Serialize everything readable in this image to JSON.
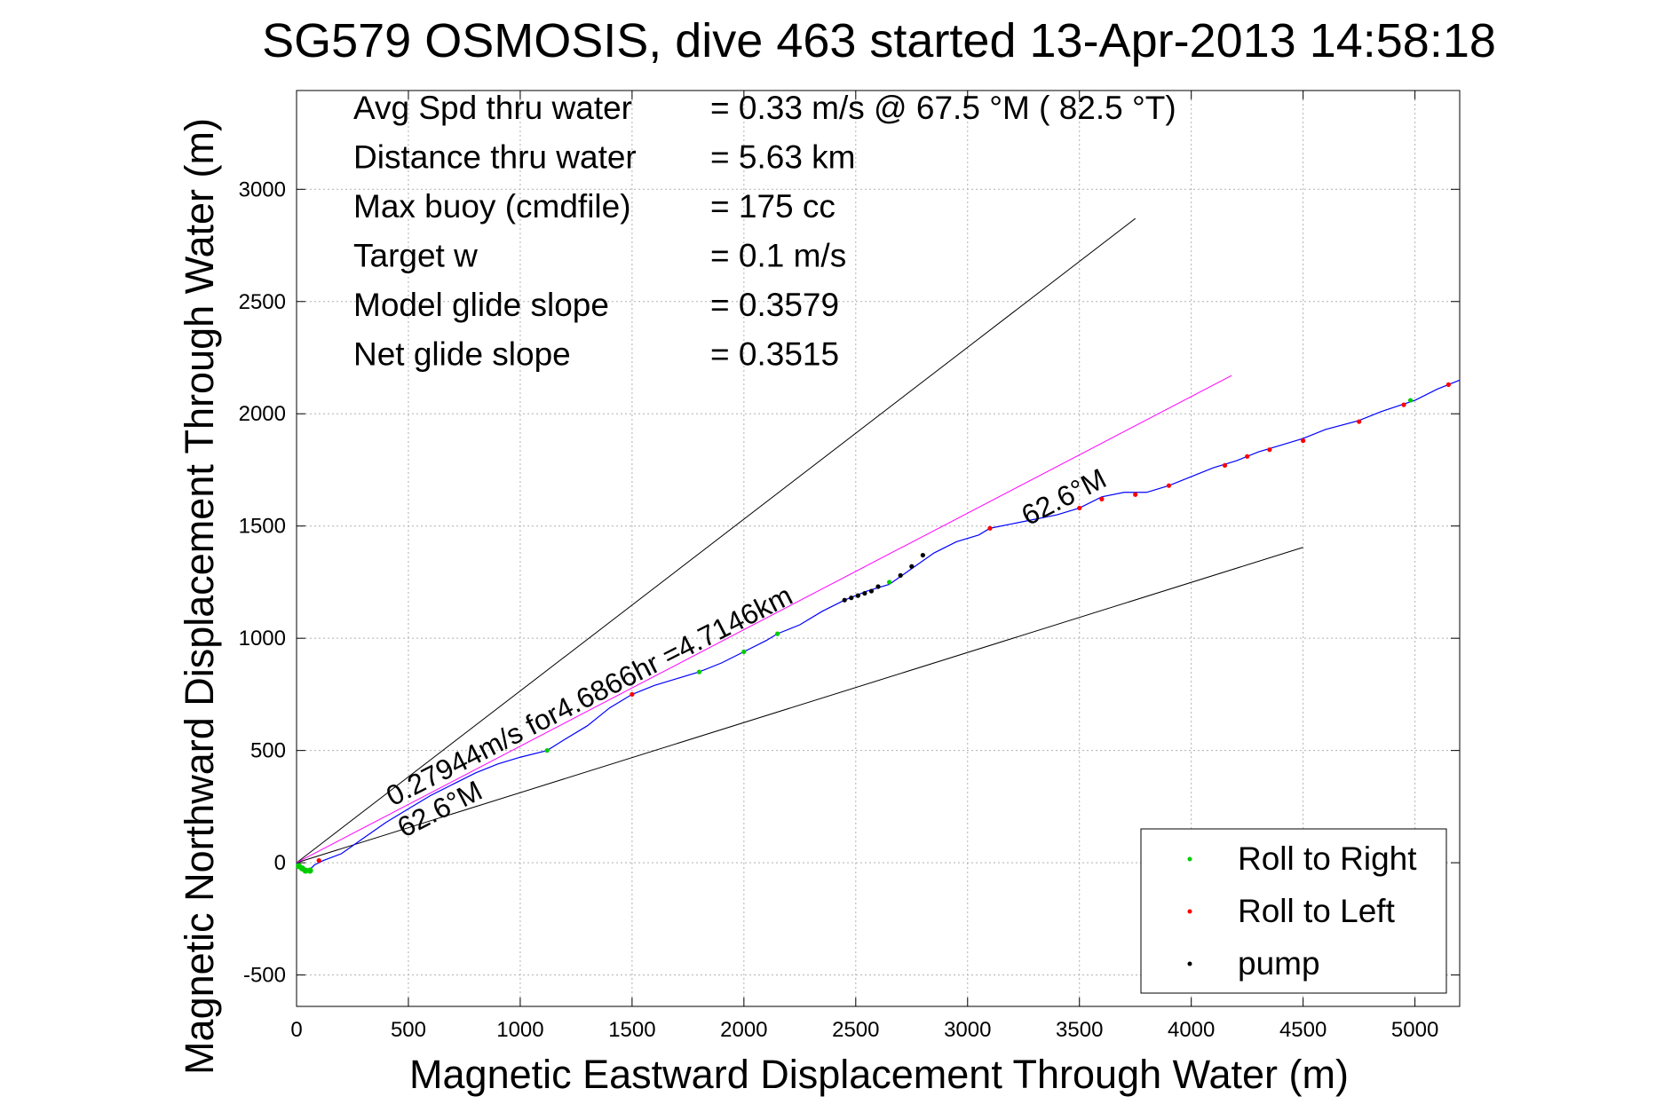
{
  "chart_data": {
    "type": "line",
    "title": "SG579 OSMOSIS, dive 463 started 13-Apr-2013 14:58:18",
    "xlabel": "Magnetic Eastward Displacement Through Water (m)",
    "ylabel": "Magnetic Northward Displacement Through Water (m)",
    "xlim": [
      0,
      5200
    ],
    "ylim": [
      -640,
      3440
    ],
    "xticks": [
      0,
      500,
      1000,
      1500,
      2000,
      2500,
      3000,
      3500,
      4000,
      4500,
      5000
    ],
    "xtick_labels": [
      "0",
      "500",
      "1000",
      "1500",
      "2000",
      "2500",
      "3000",
      "3500",
      "4000",
      "4500",
      "5000"
    ],
    "yticks": [
      -500,
      0,
      500,
      1000,
      1500,
      2000,
      2500,
      3000
    ],
    "ytick_labels": [
      "-500",
      "0",
      "500",
      "1000",
      "1500",
      "2000",
      "2500",
      "3000"
    ],
    "grid": true,
    "legend_position": "bottom-right",
    "stats": [
      {
        "label": "Avg Spd thru water",
        "value": "=  0.33 m/s @  67.5 °M ( 82.5 °T)"
      },
      {
        "label": "Distance thru water",
        "value": "=  5.63 km"
      },
      {
        "label": "Max buoy (cmdfile)",
        "value": "= 175 cc"
      },
      {
        "label": "Target w",
        "value": "= 0.1 m/s"
      },
      {
        "label": "Model glide slope",
        "value": "= 0.3579"
      },
      {
        "label": "Net glide slope",
        "value": "= 0.3515"
      }
    ],
    "reference_lines": [
      {
        "color": "#000000",
        "points": [
          [
            0,
            0
          ],
          [
            3750,
            2870
          ]
        ]
      },
      {
        "color": "#000000",
        "points": [
          [
            0,
            0
          ],
          [
            4500,
            1405
          ]
        ]
      },
      {
        "color": "#ff00ff",
        "points": [
          [
            0,
            0
          ],
          [
            4180,
            2170
          ]
        ]
      }
    ],
    "track": {
      "color": "#0000ff",
      "points": [
        [
          0,
          0
        ],
        [
          20,
          -20
        ],
        [
          50,
          -40
        ],
        [
          80,
          -10
        ],
        [
          120,
          10
        ],
        [
          200,
          40
        ],
        [
          300,
          110
        ],
        [
          400,
          180
        ],
        [
          500,
          240
        ],
        [
          600,
          300
        ],
        [
          700,
          350
        ],
        [
          800,
          400
        ],
        [
          900,
          440
        ],
        [
          1000,
          470
        ],
        [
          1120,
          500
        ],
        [
          1200,
          550
        ],
        [
          1300,
          610
        ],
        [
          1400,
          690
        ],
        [
          1500,
          750
        ],
        [
          1600,
          790
        ],
        [
          1700,
          820
        ],
        [
          1800,
          850
        ],
        [
          1900,
          890
        ],
        [
          2000,
          940
        ],
        [
          2100,
          990
        ],
        [
          2150,
          1020
        ],
        [
          2250,
          1060
        ],
        [
          2350,
          1120
        ],
        [
          2450,
          1170
        ],
        [
          2550,
          1210
        ],
        [
          2650,
          1240
        ],
        [
          2750,
          1310
        ],
        [
          2850,
          1380
        ],
        [
          2950,
          1430
        ],
        [
          3050,
          1460
        ],
        [
          3100,
          1490
        ],
        [
          3200,
          1510
        ],
        [
          3300,
          1530
        ],
        [
          3400,
          1550
        ],
        [
          3500,
          1580
        ],
        [
          3600,
          1630
        ],
        [
          3700,
          1650
        ],
        [
          3800,
          1650
        ],
        [
          3900,
          1680
        ],
        [
          4000,
          1720
        ],
        [
          4100,
          1760
        ],
        [
          4200,
          1790
        ],
        [
          4300,
          1830
        ],
        [
          4400,
          1860
        ],
        [
          4500,
          1890
        ],
        [
          4600,
          1930
        ],
        [
          4750,
          1970
        ],
        [
          4850,
          2010
        ],
        [
          5000,
          2060
        ],
        [
          5100,
          2110
        ],
        [
          5200,
          2150
        ]
      ]
    },
    "markers": {
      "roll_right": {
        "color": "#00cc00",
        "points": [
          [
            10,
            -15
          ],
          [
            25,
            -25
          ],
          [
            40,
            -35
          ],
          [
            60,
            -35
          ],
          [
            1120,
            500
          ],
          [
            1800,
            850
          ],
          [
            2150,
            1020
          ],
          [
            2000,
            940
          ],
          [
            2650,
            1250
          ],
          [
            4980,
            2060
          ]
        ]
      },
      "roll_left": {
        "color": "#ff0000",
        "points": [
          [
            100,
            10
          ],
          [
            1500,
            750
          ],
          [
            3100,
            1490
          ],
          [
            3500,
            1580
          ],
          [
            3600,
            1620
          ],
          [
            3750,
            1640
          ],
          [
            3900,
            1680
          ],
          [
            4150,
            1770
          ],
          [
            4250,
            1810
          ],
          [
            4350,
            1840
          ],
          [
            4500,
            1880
          ],
          [
            4750,
            1965
          ],
          [
            4950,
            2040
          ],
          [
            5150,
            2130
          ]
        ]
      },
      "pump": {
        "color": "#000000",
        "points": [
          [
            2450,
            1170
          ],
          [
            2480,
            1180
          ],
          [
            2510,
            1190
          ],
          [
            2540,
            1200
          ],
          [
            2570,
            1210
          ],
          [
            2600,
            1230
          ],
          [
            2700,
            1280
          ],
          [
            2750,
            1320
          ],
          [
            2800,
            1370
          ]
        ]
      }
    },
    "annotations": [
      {
        "text": "0.27944m/s for4.6866hr =4.7146km",
        "x": 430,
        "y": 250,
        "angle_deg": -27
      },
      {
        "text": "62.6°M",
        "x": 480,
        "y": 110,
        "angle_deg": -27
      },
      {
        "text": "62.6°M",
        "x": 3270,
        "y": 1500,
        "angle_deg": -27
      }
    ],
    "legend": [
      {
        "label": "Roll to Right",
        "color": "#00cc00"
      },
      {
        "label": "Roll to Left",
        "color": "#ff0000"
      },
      {
        "label": "pump",
        "color": "#000000"
      }
    ]
  }
}
